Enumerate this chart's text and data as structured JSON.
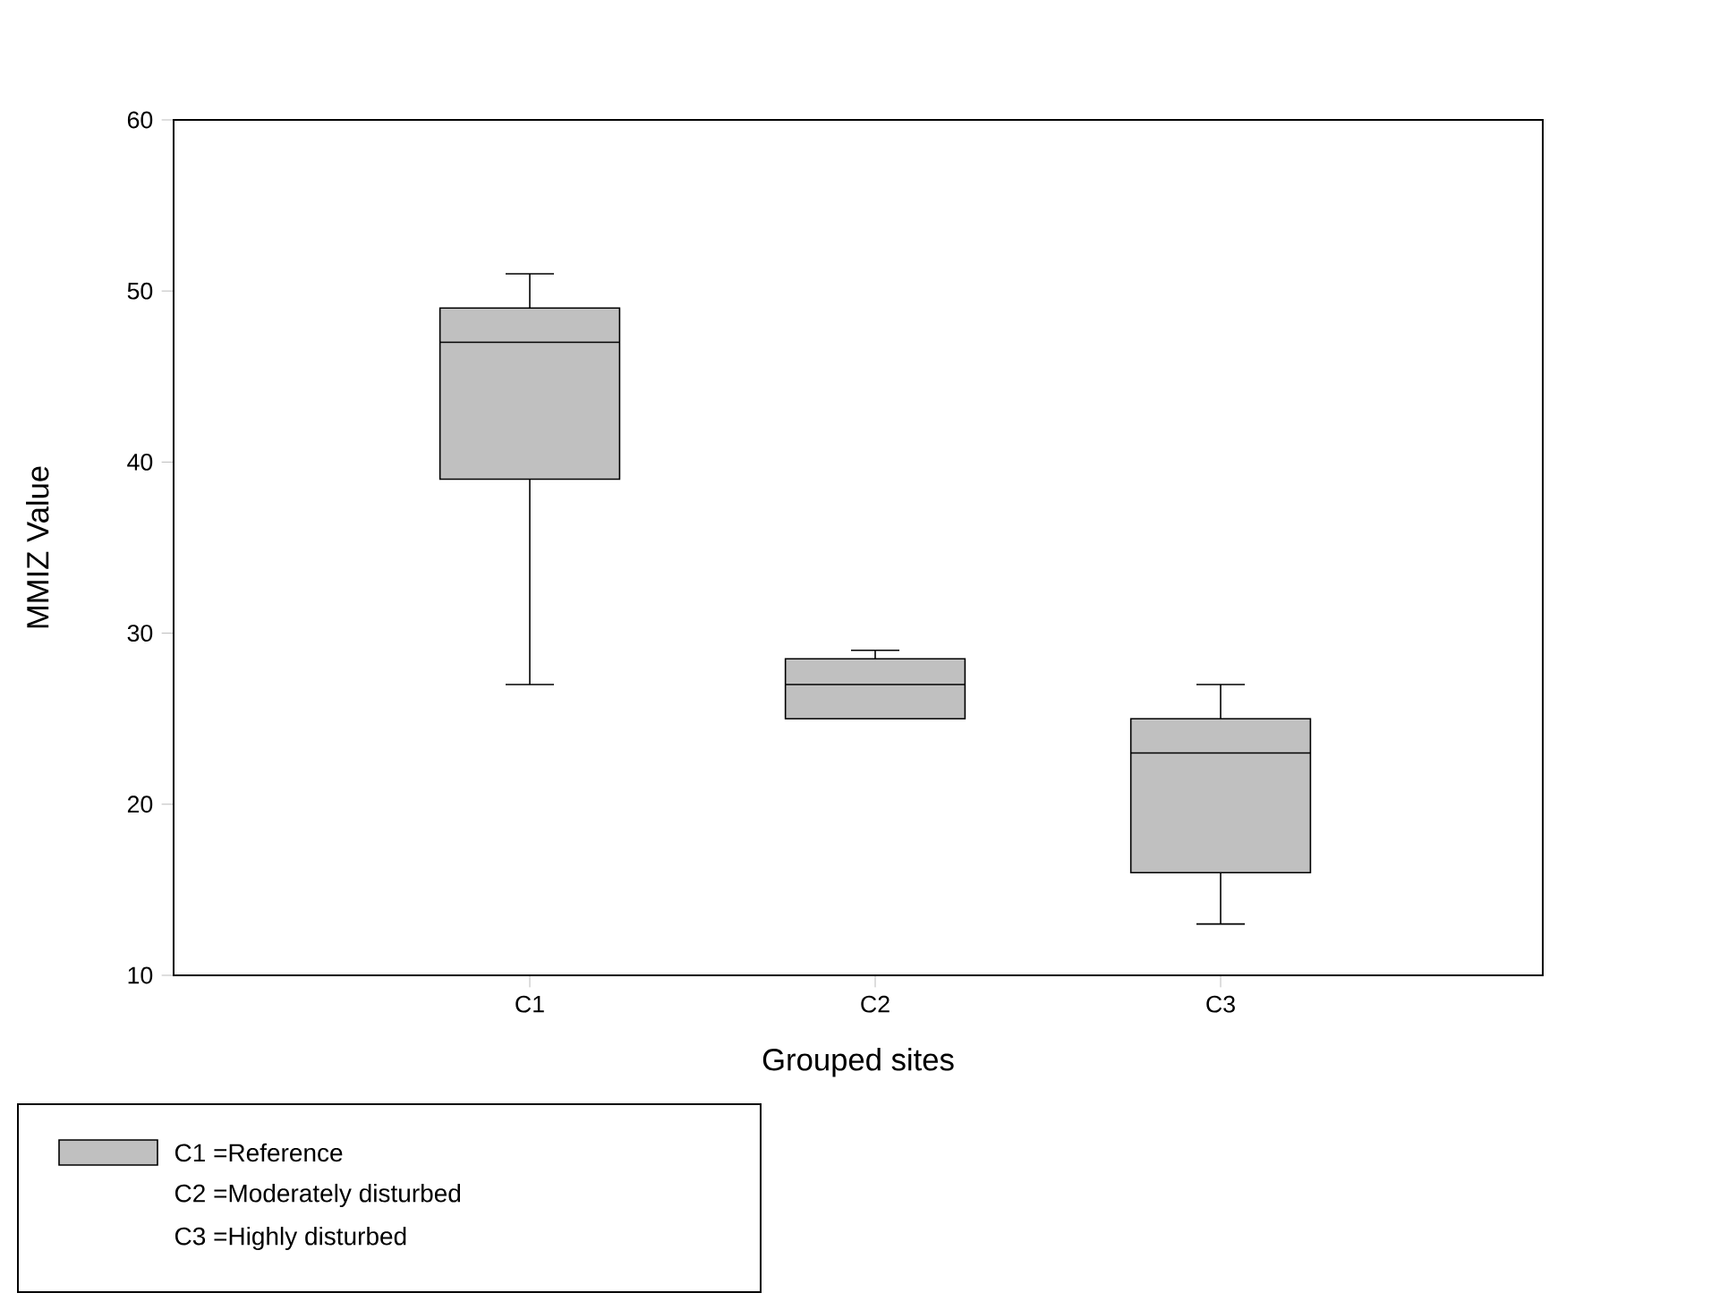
{
  "chart_data": {
    "type": "box",
    "xlabel": "Grouped sites",
    "ylabel": "MMIZ Value",
    "categories": [
      "C1",
      "C2",
      "C3"
    ],
    "series": [
      {
        "name": "C1 =Reference",
        "color": "#c0c0c0",
        "boxes": [
          {
            "low": 27,
            "q1": 39,
            "median": 47,
            "q3": 49,
            "high": 51
          },
          {
            "low": 25,
            "q1": 25,
            "median": 27,
            "q3": 28.5,
            "high": 29
          },
          {
            "low": 13,
            "q1": 16,
            "median": 23,
            "q3": 25,
            "high": 27
          }
        ]
      }
    ],
    "annotations": [
      "C2 =Moderately disturbed",
      "C3 =Highly disturbed"
    ],
    "ylim": [
      10,
      60
    ],
    "yticks": [
      10,
      20,
      30,
      40,
      50,
      60
    ],
    "legend": "bottom left"
  }
}
